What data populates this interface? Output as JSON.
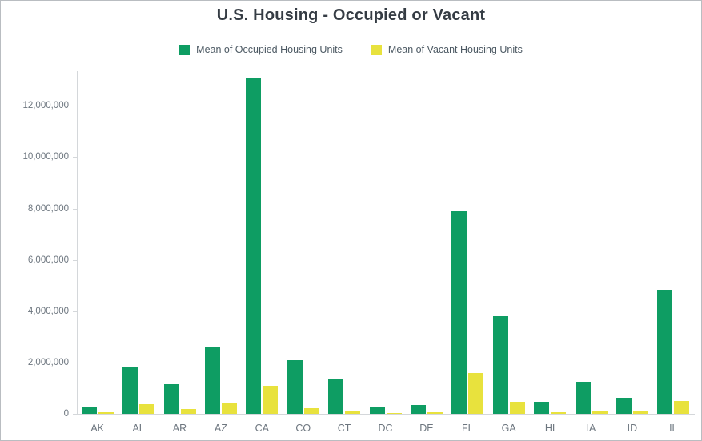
{
  "page": {
    "background": "#ffffff",
    "border_color": "#b9bdc1"
  },
  "colors": {
    "title_text": "#353c44",
    "legend_text": "#4c5963",
    "axis_text": "#6d767f",
    "axis_line": "#d4d7da"
  },
  "chart_data": {
    "type": "bar",
    "title": "U.S. Housing - Occupied or Vacant",
    "xlabel": "",
    "ylabel": "",
    "grid": false,
    "legend_position": "top",
    "categories": [
      "AK",
      "AL",
      "AR",
      "AZ",
      "CA",
      "CO",
      "CT",
      "DC",
      "DE",
      "FL",
      "GA",
      "HI",
      "IA",
      "ID",
      "IL"
    ],
    "series": [
      {
        "name": "Mean of Occupied Housing Units",
        "color": "#0e9d63",
        "values": [
          250000,
          1850000,
          1150000,
          2600000,
          13100000,
          2100000,
          1380000,
          270000,
          350000,
          7900000,
          3800000,
          460000,
          1250000,
          620000,
          4850000
        ]
      },
      {
        "name": "Mean of Vacant Housing Units",
        "color": "#e8e23d",
        "values": [
          60000,
          370000,
          190000,
          390000,
          1080000,
          220000,
          100000,
          30000,
          60000,
          1600000,
          480000,
          70000,
          110000,
          80000,
          490000
        ]
      }
    ],
    "ylim": [
      0,
      13350000
    ],
    "yticks": [
      0,
      2000000,
      4000000,
      6000000,
      8000000,
      10000000,
      12000000
    ],
    "ytick_labels": [
      "0",
      "2,000,000",
      "4,000,000",
      "6,000,000",
      "8,000,000",
      "10,000,000",
      "12,000,000"
    ]
  }
}
